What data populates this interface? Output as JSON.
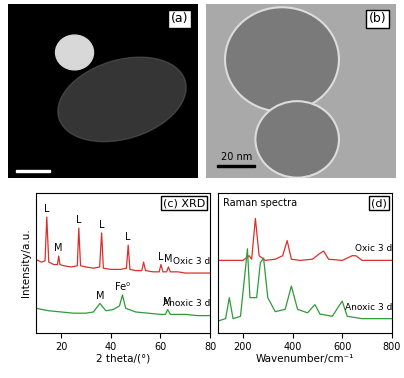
{
  "images": [
    {
      "label": "(a)"
    },
    {
      "label": "(b)",
      "scale_bar": "20 nm"
    }
  ],
  "chart_data": [
    {
      "type": "line",
      "title": "(c) XRD",
      "x_label": "2 theta/(°)",
      "y_label": "Intensity/a.u.",
      "xlim": [
        10,
        80
      ],
      "xticks": [
        20,
        40,
        60,
        80
      ],
      "ylim": [
        0,
        115
      ],
      "yticks": [],
      "tick_labels": "x",
      "series": [
        {
          "name": "Oxic 3 d",
          "color": "#d9302c",
          "x": [
            10,
            12,
            13.5,
            14.2,
            15,
            17,
            18.5,
            19,
            19.5,
            21,
            24,
            26.5,
            27.1,
            27.8,
            30,
            33,
            35.5,
            36.3,
            37,
            40,
            44,
            46.3,
            47,
            47.7,
            50,
            52.5,
            53.2,
            54,
            57,
            59.5,
            60.2,
            61,
            62.5,
            63.2,
            64,
            67,
            70,
            75,
            80
          ],
          "values": [
            60,
            58,
            59,
            95,
            58,
            56,
            56,
            63,
            56,
            55,
            54,
            55,
            86,
            55,
            54,
            53,
            54,
            82,
            53,
            52,
            52,
            53,
            72,
            52,
            51,
            51,
            58,
            51,
            50,
            50,
            56,
            50,
            50,
            54,
            50,
            50,
            49,
            49,
            49
          ]
        },
        {
          "name": "Anoxic 3 d",
          "color": "#2e9b38",
          "x": [
            10,
            15,
            20,
            25,
            30,
            33,
            35.6,
            38,
            41,
            43.5,
            44.7,
            46,
            50,
            55,
            60,
            62,
            62.9,
            64,
            70,
            75,
            80
          ],
          "values": [
            20,
            18,
            17,
            16,
            16,
            17,
            24,
            18,
            19,
            22,
            31,
            20,
            17,
            16,
            15,
            15,
            19,
            15,
            15,
            14,
            14
          ]
        }
      ],
      "annotations": [
        {
          "text": "L",
          "x": 14.2,
          "y": 95
        },
        {
          "text": "M",
          "x": 19,
          "y": 63
        },
        {
          "text": "L",
          "x": 27.1,
          "y": 86
        },
        {
          "text": "L",
          "x": 36.3,
          "y": 82
        },
        {
          "text": "L",
          "x": 47,
          "y": 72
        },
        {
          "text": "L",
          "x": 60.2,
          "y": 56
        },
        {
          "text": "M",
          "x": 63.2,
          "y": 54
        },
        {
          "text": "M",
          "x": 35.6,
          "y": 24
        },
        {
          "text": "Fe⁰",
          "x": 44.7,
          "y": 31
        },
        {
          "text": "M",
          "x": 62.9,
          "y": 19
        }
      ]
    },
    {
      "type": "line",
      "title": "(d)",
      "subtitle": "Raman spectra",
      "x_label": "Wavenumber/cm⁻¹",
      "xlim": [
        100,
        800
      ],
      "xticks": [
        200,
        400,
        600,
        800
      ],
      "ylim": [
        0,
        120
      ],
      "yticks": [],
      "tick_labels": "x",
      "series": [
        {
          "name": "Oxic 3 d",
          "color": "#d9302c",
          "x": [
            100,
            150,
            200,
            225,
            235,
            250,
            265,
            290,
            330,
            360,
            378,
            395,
            430,
            480,
            510,
            525,
            545,
            600,
            640,
            655,
            680,
            750,
            800
          ],
          "values": [
            62,
            62,
            62,
            66,
            63,
            98,
            66,
            62,
            63,
            66,
            79,
            63,
            62,
            63,
            68,
            70,
            63,
            62,
            66,
            66,
            62,
            62,
            62
          ]
        },
        {
          "name": "Anoxic 3 d",
          "color": "#2e9b38",
          "x": [
            100,
            130,
            145,
            160,
            190,
            210,
            218,
            228,
            255,
            270,
            283,
            300,
            330,
            370,
            395,
            420,
            460,
            490,
            510,
            560,
            590,
            600,
            620,
            680,
            800
          ],
          "values": [
            10,
            12,
            30,
            12,
            14,
            55,
            72,
            30,
            30,
            60,
            64,
            30,
            18,
            20,
            40,
            20,
            17,
            24,
            16,
            14,
            24,
            27,
            14,
            12,
            12
          ]
        }
      ]
    }
  ]
}
